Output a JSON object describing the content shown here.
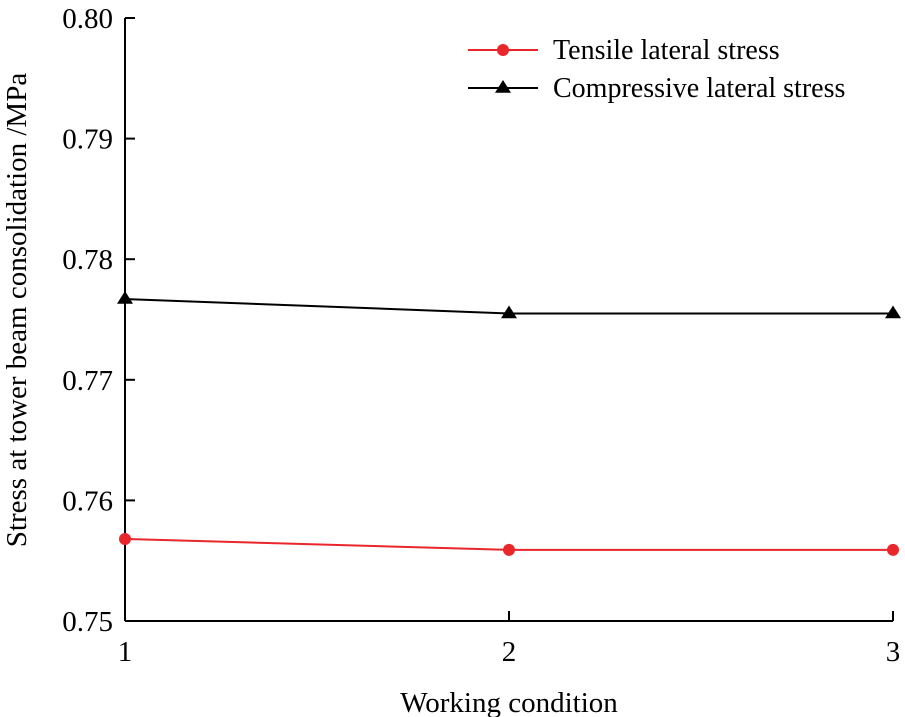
{
  "chart_data": {
    "type": "line",
    "title": "",
    "xlabel": "Working condition",
    "ylabel": "Stress at tower beam consolidation /MPa",
    "categories": [
      "1",
      "2",
      "3"
    ],
    "x": [
      1,
      2,
      3
    ],
    "xlim": [
      1,
      3
    ],
    "ylim": [
      0.75,
      0.8
    ],
    "yticks": [
      0.75,
      0.76,
      0.77,
      0.78,
      0.79,
      0.8
    ],
    "ytick_labels": [
      "0.75",
      "0.76",
      "0.77",
      "0.78",
      "0.79",
      "0.80"
    ],
    "grid": false,
    "legend_position": "top-right",
    "series": [
      {
        "name": "Tensile lateral stress",
        "values": [
          0.7568,
          0.7559,
          0.7559
        ],
        "color": "#e8262b",
        "marker": "circle"
      },
      {
        "name": "Compressive lateral stress",
        "values": [
          0.7767,
          0.7755,
          0.7755
        ],
        "color": "#000000",
        "marker": "triangle"
      }
    ]
  }
}
